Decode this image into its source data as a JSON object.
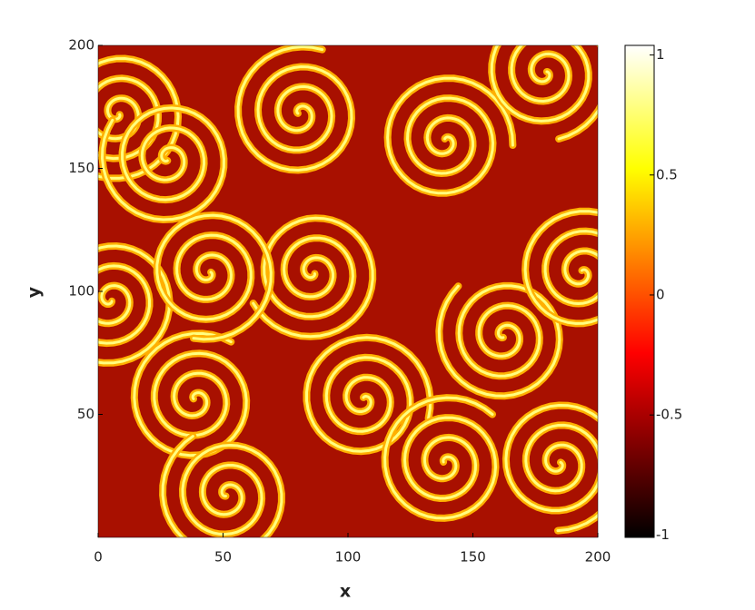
{
  "chart_data": {
    "type": "heatmap",
    "xlabel": "x",
    "ylabel": "y",
    "xlim": [
      0,
      200
    ],
    "ylim": [
      0,
      200
    ],
    "xticks": [
      0,
      50,
      100,
      150,
      200
    ],
    "yticks": [
      50,
      100,
      150,
      200
    ],
    "colormap": "hot",
    "clim": [
      -1.01,
      1.04
    ],
    "cticks": [
      -1,
      -0.5,
      0,
      0.5,
      1
    ]
  }
}
